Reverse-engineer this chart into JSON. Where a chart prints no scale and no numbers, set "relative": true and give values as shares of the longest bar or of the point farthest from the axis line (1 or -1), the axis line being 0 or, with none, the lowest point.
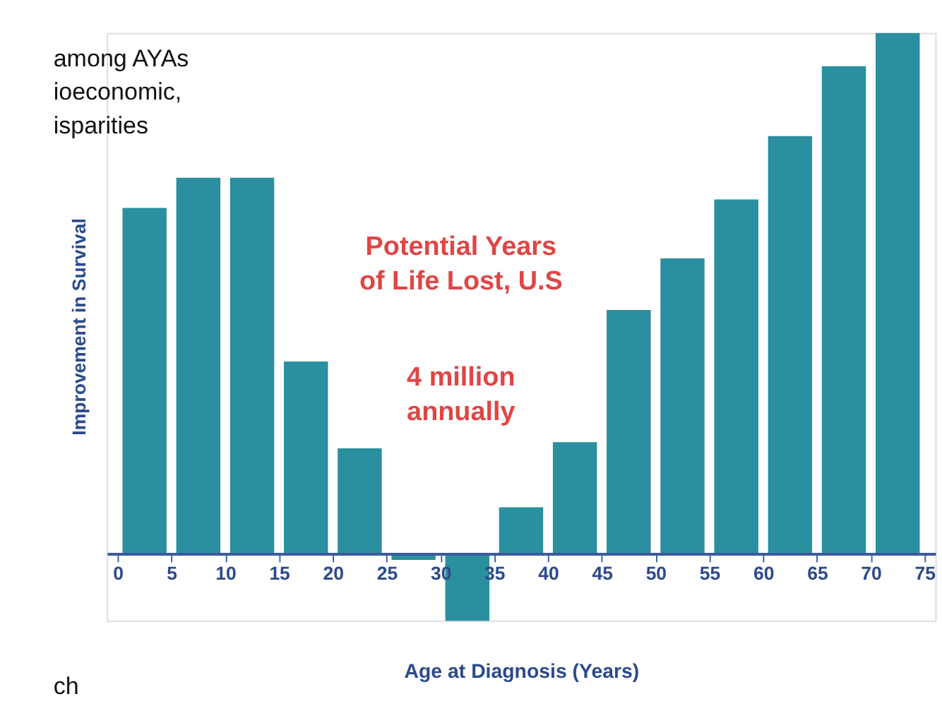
{
  "chart_data": {
    "type": "bar",
    "relative": true,
    "xlabel": "Age at Diagnosis (Years)",
    "ylabel": "Improvement in Survival",
    "x": [
      2.5,
      7.5,
      12.5,
      17.5,
      22.5,
      27.5,
      32.5,
      37.5,
      42.5,
      47.5,
      52.5,
      57.5,
      62.5,
      67.5,
      72.5
    ],
    "values": [
      0.664,
      0.722,
      0.722,
      0.369,
      0.202,
      -0.012,
      -0.129,
      0.089,
      0.214,
      0.468,
      0.567,
      0.68,
      0.802,
      0.936,
      1
    ],
    "color": "#2a8f9e",
    "xlim": [
      -1,
      76
    ],
    "xticks": [
      0,
      5,
      10,
      15,
      20,
      25,
      30,
      35,
      40,
      45,
      50,
      55,
      60,
      65,
      70,
      75
    ],
    "grid": false,
    "annotations": [
      "among AYAs",
      "ioeconomic,",
      "isparities",
      "ch",
      "Potential Years",
      "of Life Lost, U.S",
      "4 million",
      "annually"
    ]
  }
}
